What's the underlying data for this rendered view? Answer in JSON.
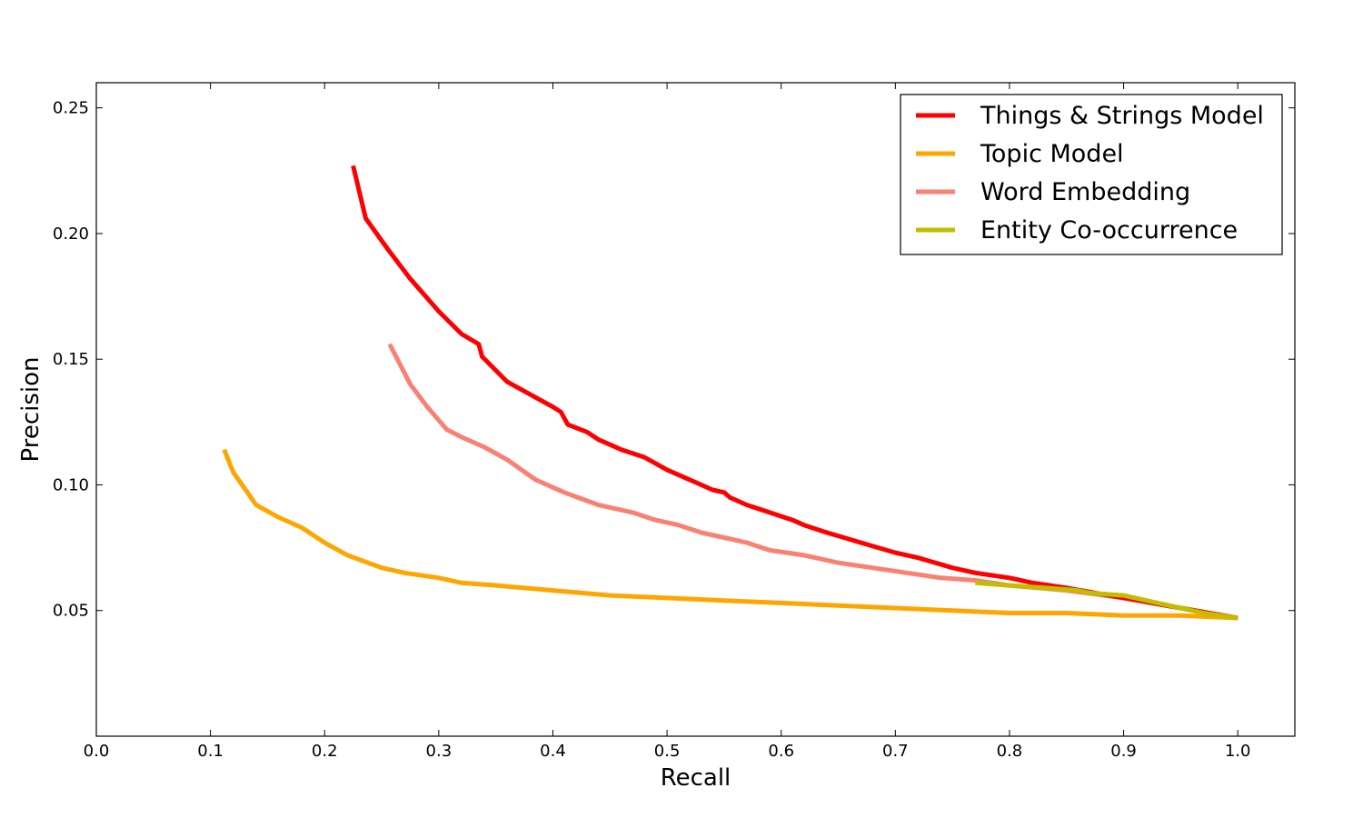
{
  "chart_data": {
    "type": "line",
    "title": "",
    "xlabel": "Recall",
    "ylabel": "Precision",
    "xlim": [
      0.0,
      1.05
    ],
    "ylim": [
      0.0,
      0.26
    ],
    "xticks": [
      0.0,
      0.1,
      0.2,
      0.3,
      0.4,
      0.5,
      0.6,
      0.7,
      0.8,
      0.9,
      1.0
    ],
    "xtick_labels": [
      "0.0",
      "0.1",
      "0.2",
      "0.3",
      "0.4",
      "0.5",
      "0.6",
      "0.7",
      "0.8",
      "0.9",
      "1.0"
    ],
    "yticks": [
      0.05,
      0.1,
      0.15,
      0.2,
      0.25
    ],
    "ytick_labels": [
      "0.05",
      "0.10",
      "0.15",
      "0.20",
      "0.25"
    ],
    "grid": false,
    "legend_position": "top-right",
    "series": [
      {
        "name": "Things & Strings Model",
        "color": "#ff0000",
        "points": [
          [
            0.225,
            0.227
          ],
          [
            0.236,
            0.206
          ],
          [
            0.255,
            0.194
          ],
          [
            0.275,
            0.182
          ],
          [
            0.3,
            0.169
          ],
          [
            0.32,
            0.16
          ],
          [
            0.335,
            0.156
          ],
          [
            0.338,
            0.151
          ],
          [
            0.36,
            0.141
          ],
          [
            0.38,
            0.136
          ],
          [
            0.4,
            0.131
          ],
          [
            0.407,
            0.129
          ],
          [
            0.413,
            0.124
          ],
          [
            0.43,
            0.121
          ],
          [
            0.44,
            0.118
          ],
          [
            0.45,
            0.116
          ],
          [
            0.46,
            0.114
          ],
          [
            0.48,
            0.111
          ],
          [
            0.5,
            0.106
          ],
          [
            0.52,
            0.102
          ],
          [
            0.54,
            0.098
          ],
          [
            0.55,
            0.097
          ],
          [
            0.555,
            0.095
          ],
          [
            0.57,
            0.092
          ],
          [
            0.59,
            0.089
          ],
          [
            0.61,
            0.086
          ],
          [
            0.62,
            0.084
          ],
          [
            0.64,
            0.081
          ],
          [
            0.655,
            0.079
          ],
          [
            0.67,
            0.077
          ],
          [
            0.685,
            0.075
          ],
          [
            0.7,
            0.073
          ],
          [
            0.72,
            0.071
          ],
          [
            0.75,
            0.067
          ],
          [
            0.77,
            0.065
          ],
          [
            0.8,
            0.063
          ],
          [
            0.82,
            0.061
          ],
          [
            0.85,
            0.059
          ],
          [
            0.9,
            0.055
          ],
          [
            0.95,
            0.051
          ],
          [
            1.0,
            0.047
          ]
        ]
      },
      {
        "name": "Topic Model",
        "color": "#ffa500",
        "points": [
          [
            0.112,
            0.114
          ],
          [
            0.12,
            0.105
          ],
          [
            0.14,
            0.092
          ],
          [
            0.16,
            0.087
          ],
          [
            0.18,
            0.083
          ],
          [
            0.2,
            0.077
          ],
          [
            0.22,
            0.072
          ],
          [
            0.25,
            0.067
          ],
          [
            0.27,
            0.065
          ],
          [
            0.3,
            0.063
          ],
          [
            0.32,
            0.061
          ],
          [
            0.35,
            0.06
          ],
          [
            0.4,
            0.058
          ],
          [
            0.45,
            0.056
          ],
          [
            0.5,
            0.055
          ],
          [
            0.55,
            0.054
          ],
          [
            0.6,
            0.053
          ],
          [
            0.65,
            0.052
          ],
          [
            0.7,
            0.051
          ],
          [
            0.75,
            0.05
          ],
          [
            0.8,
            0.049
          ],
          [
            0.85,
            0.049
          ],
          [
            0.9,
            0.048
          ],
          [
            0.95,
            0.048
          ],
          [
            1.0,
            0.047
          ]
        ]
      },
      {
        "name": "Word Embedding",
        "color": "#fa8072",
        "points": [
          [
            0.257,
            0.156
          ],
          [
            0.275,
            0.14
          ],
          [
            0.29,
            0.131
          ],
          [
            0.307,
            0.122
          ],
          [
            0.32,
            0.119
          ],
          [
            0.34,
            0.115
          ],
          [
            0.36,
            0.11
          ],
          [
            0.385,
            0.102
          ],
          [
            0.41,
            0.097
          ],
          [
            0.44,
            0.092
          ],
          [
            0.47,
            0.089
          ],
          [
            0.49,
            0.086
          ],
          [
            0.51,
            0.084
          ],
          [
            0.53,
            0.081
          ],
          [
            0.55,
            0.079
          ],
          [
            0.57,
            0.077
          ],
          [
            0.59,
            0.074
          ],
          [
            0.62,
            0.072
          ],
          [
            0.65,
            0.069
          ],
          [
            0.68,
            0.067
          ],
          [
            0.71,
            0.065
          ],
          [
            0.74,
            0.063
          ],
          [
            0.77,
            0.062
          ],
          [
            0.8,
            0.06
          ],
          [
            0.85,
            0.058
          ],
          [
            0.9,
            0.055
          ],
          [
            0.95,
            0.051
          ],
          [
            1.0,
            0.047
          ]
        ]
      },
      {
        "name": "Entity Co-occurrence",
        "color": "#bfbf00",
        "points": [
          [
            0.77,
            0.061
          ],
          [
            0.8,
            0.06
          ],
          [
            0.83,
            0.059
          ],
          [
            0.86,
            0.058
          ],
          [
            0.87,
            0.057
          ],
          [
            0.9,
            0.056
          ],
          [
            0.92,
            0.054
          ],
          [
            0.95,
            0.051
          ],
          [
            0.97,
            0.049
          ],
          [
            1.0,
            0.047
          ]
        ]
      }
    ]
  }
}
